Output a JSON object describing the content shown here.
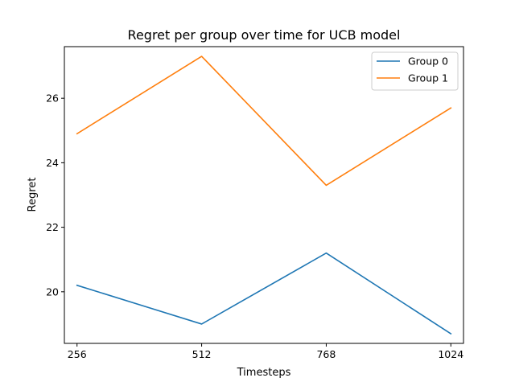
{
  "chart_data": {
    "type": "line",
    "title": "Regret per group over time for UCB model",
    "xlabel": "Timesteps",
    "ylabel": "Regret",
    "x": [
      256,
      512,
      768,
      1024
    ],
    "x_tick_labels": [
      "256",
      "512",
      "768",
      "1024"
    ],
    "y_ticks": [
      20,
      22,
      24,
      26
    ],
    "y_tick_labels": [
      "20",
      "22",
      "24",
      "26"
    ],
    "xlim": [
      230,
      1050
    ],
    "ylim": [
      18.4,
      27.6
    ],
    "grid": false,
    "legend_position": "top-right",
    "series": [
      {
        "name": "Group 0",
        "color": "#1f77b4",
        "values": [
          20.2,
          19.0,
          21.2,
          18.7
        ]
      },
      {
        "name": "Group 1",
        "color": "#ff7f0e",
        "values": [
          24.9,
          27.3,
          23.3,
          25.7
        ]
      }
    ]
  }
}
